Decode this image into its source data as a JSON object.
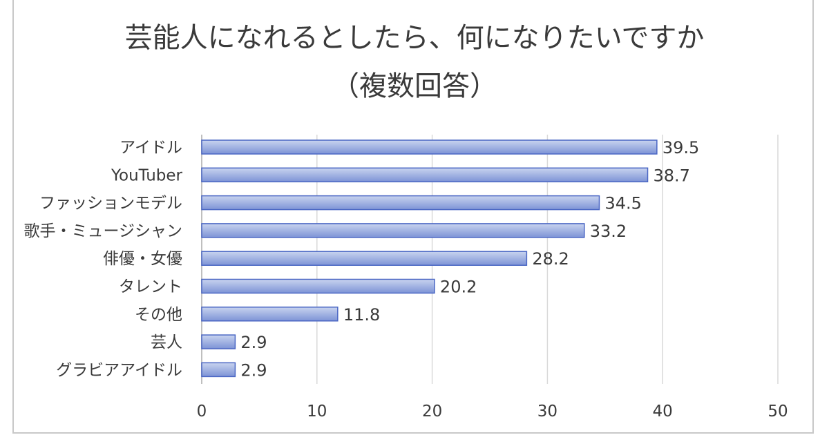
{
  "chart_data": {
    "type": "bar",
    "orientation": "horizontal",
    "title": "芸能人になれるとしたら、何になりたいですか",
    "subtitle": "（複数回答）",
    "categories": [
      "アイドル",
      "YouTuber",
      "ファッションモデル",
      "歌手・ミュージシャン",
      "俳優・女優",
      "タレント",
      "その他",
      "芸人",
      "グラビアアイドル"
    ],
    "values": [
      39.5,
      38.7,
      34.5,
      33.2,
      28.2,
      20.2,
      11.8,
      2.9,
      2.9
    ],
    "value_labels": [
      "39.5",
      "38.7",
      "34.5",
      "33.2",
      "28.2",
      "20.2",
      "11.8",
      "2.9",
      "2.9"
    ],
    "xlim": [
      0,
      50
    ],
    "x_ticks": [
      0,
      10,
      20,
      30,
      40,
      50
    ],
    "x_tick_labels": [
      "0",
      "10",
      "20",
      "30",
      "40",
      "50"
    ],
    "xlabel": "",
    "ylabel": "",
    "grid": "vertical",
    "legend": "none",
    "colors": {
      "bar_top": "#c9d4ef",
      "bar_bottom": "#7d93d6",
      "bar_edge": "#4a66c4",
      "grid": "#d9d9d9",
      "axis": "#bfbfbf",
      "text": "#3a3a3a"
    }
  }
}
